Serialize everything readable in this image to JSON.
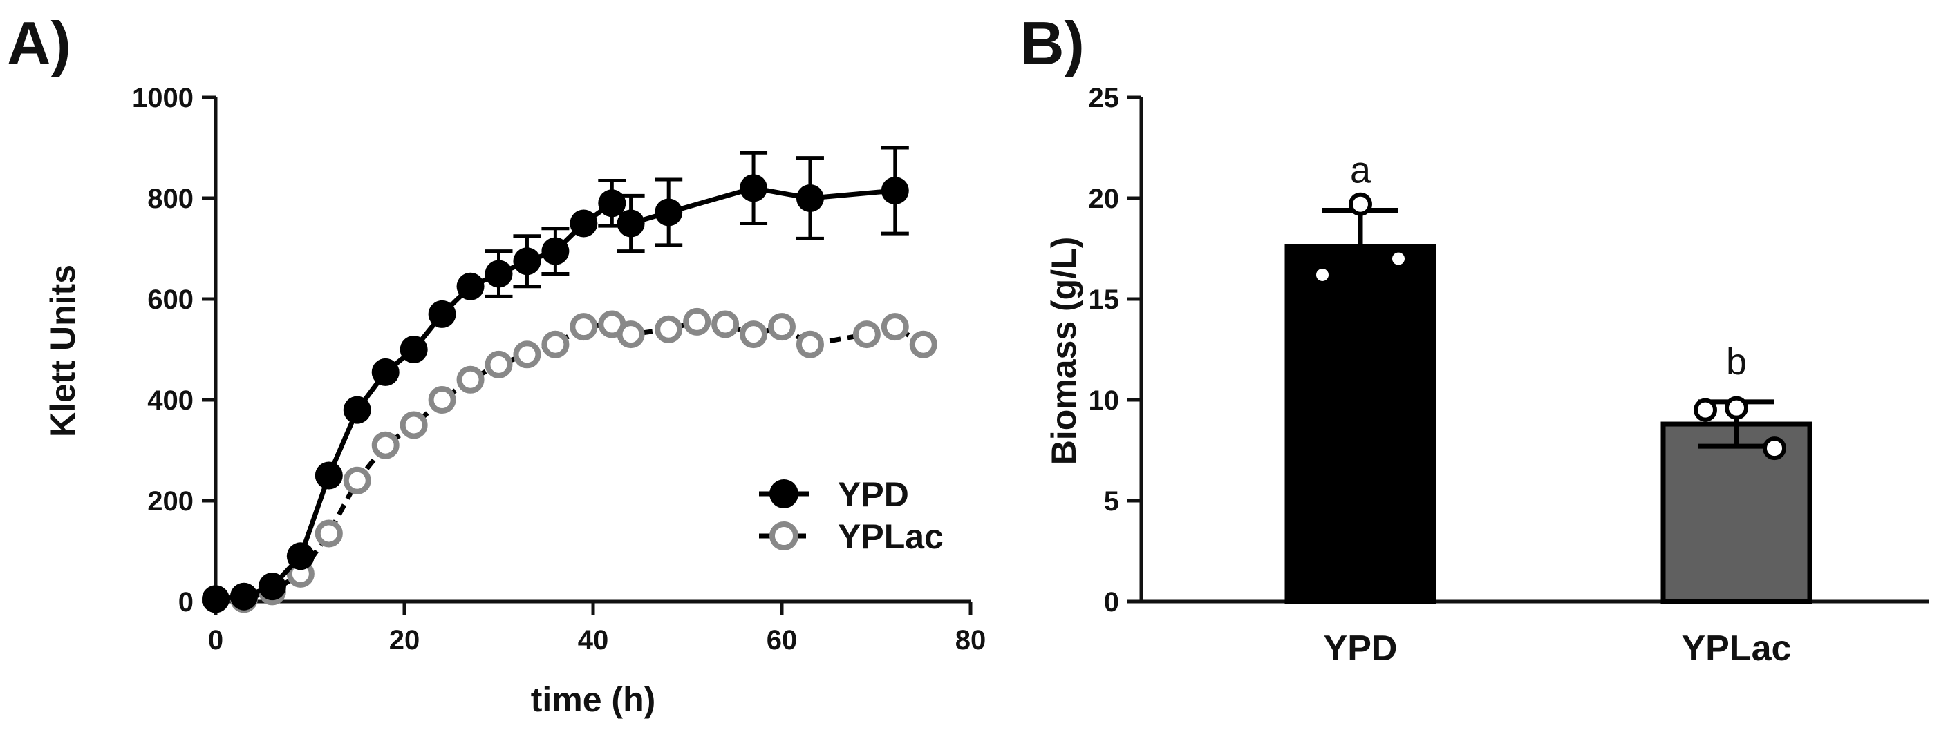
{
  "chart_data": [
    {
      "type": "line",
      "panel_label": "A)",
      "xlabel": "time (h)",
      "ylabel": "Klett Units",
      "xlim": [
        0,
        80
      ],
      "ylim": [
        0,
        1000
      ],
      "xticks": [
        0,
        20,
        40,
        60,
        80
      ],
      "yticks": [
        0,
        200,
        400,
        600,
        800,
        1000
      ],
      "grid": false,
      "legend_position": "bottom-right",
      "series": [
        {
          "name": "YPD",
          "color": "#000000",
          "marker": "filled-circle",
          "line_style": "solid",
          "x": [
            0,
            3,
            6,
            9,
            12,
            15,
            18,
            21,
            24,
            27,
            30,
            33,
            36,
            39,
            42,
            44,
            48,
            57,
            63,
            72
          ],
          "y": [
            5,
            10,
            30,
            90,
            250,
            380,
            455,
            500,
            570,
            625,
            650,
            675,
            695,
            750,
            790,
            750,
            772,
            820,
            800,
            815
          ],
          "error": [
            0,
            0,
            0,
            0,
            0,
            0,
            0,
            0,
            0,
            0,
            45,
            50,
            45,
            0,
            45,
            55,
            65,
            70,
            80,
            85
          ]
        },
        {
          "name": "YPLac",
          "color": "#888888",
          "marker": "open-circle",
          "line_style": "dashed",
          "x": [
            0,
            3,
            6,
            9,
            12,
            15,
            18,
            21,
            24,
            27,
            30,
            33,
            36,
            39,
            42,
            44,
            48,
            51,
            54,
            57,
            60,
            63,
            69,
            72,
            75
          ],
          "y": [
            5,
            5,
            20,
            55,
            135,
            240,
            310,
            350,
            400,
            440,
            470,
            490,
            510,
            545,
            550,
            530,
            540,
            555,
            550,
            530,
            545,
            510,
            530,
            545,
            510
          ]
        }
      ]
    },
    {
      "type": "bar",
      "panel_label": "B)",
      "xlabel": "",
      "ylabel": "Biomass (g/L)",
      "ylim": [
        0,
        25
      ],
      "yticks": [
        0,
        5,
        10,
        15,
        20,
        25
      ],
      "grid": false,
      "categories": [
        "YPD",
        "YPLac"
      ],
      "values": [
        17.6,
        8.8
      ],
      "error": [
        1.8,
        1.1
      ],
      "bar_colors": [
        "#000000",
        "#606060"
      ],
      "replicates": [
        [
          19.7,
          16.2,
          17.0
        ],
        [
          9.5,
          9.6,
          7.6
        ]
      ],
      "significance_letters": [
        "a",
        "b"
      ]
    }
  ]
}
